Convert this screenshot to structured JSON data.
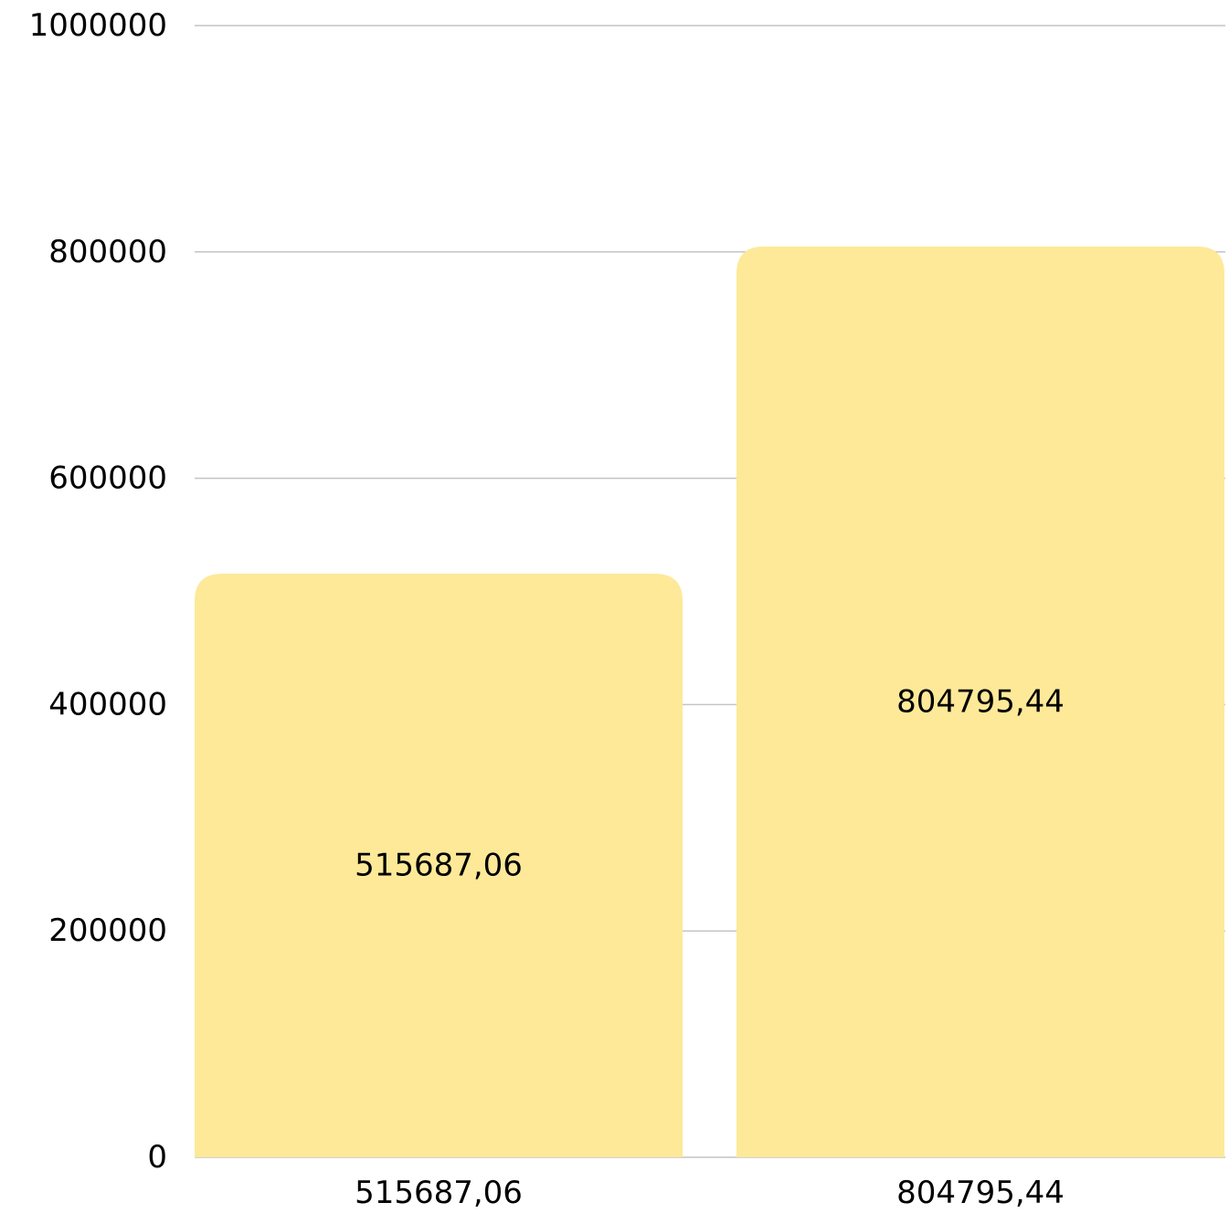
{
  "chart_data": {
    "type": "bar",
    "categories": [
      "515687,06",
      "804795,44"
    ],
    "values": [
      515687.06,
      804795.44
    ],
    "data_labels": [
      "515687,06",
      "804795,44"
    ],
    "title": "",
    "xlabel": "",
    "ylabel": "",
    "ylim": [
      0,
      1000000
    ],
    "yticks": [
      0,
      200000,
      400000,
      600000,
      800000,
      1000000
    ],
    "ytick_labels": [
      "0",
      "200000",
      "400000",
      "600000",
      "800000",
      "1000000"
    ],
    "grid": true,
    "legend": "none",
    "colors": {
      "bar": "#fde998",
      "grid": "#c4c4c4",
      "text": "#000000",
      "background": "#ffffff"
    }
  }
}
